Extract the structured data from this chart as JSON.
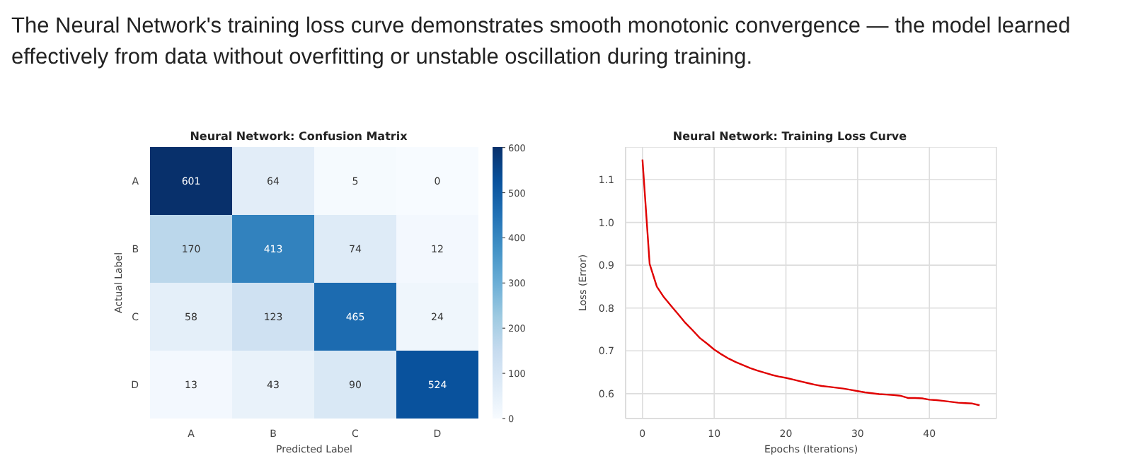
{
  "chart_data": [
    {
      "type": "other",
      "annotations": [
        "The Neural Network's training loss curve demonstrates smooth monotonic convergence — the model learned effectively from data without overfitting or unstable oscillation during training."
      ]
    },
    {
      "type": "heatmap",
      "title": "Neural Network: Confusion Matrix",
      "xlabel": "Predicted Label",
      "ylabel": "Actual Label",
      "categories": [
        "A",
        "B",
        "C",
        "D"
      ],
      "y_categories": [
        "A",
        "B",
        "C",
        "D"
      ],
      "cells": [
        [
          601,
          64,
          5,
          0
        ],
        [
          170,
          413,
          74,
          12
        ],
        [
          58,
          123,
          465,
          24
        ],
        [
          13,
          43,
          90,
          524
        ]
      ],
      "clim": [
        0,
        601
      ],
      "cticks": [
        0,
        100,
        200,
        300,
        400,
        500,
        600
      ],
      "data_labels": true
    },
    {
      "type": "line",
      "title": "Neural Network: Training Loss Curve",
      "xlabel": "Epochs (Iterations)",
      "ylabel": "Loss (Error)",
      "x": [
        0,
        1,
        2,
        3,
        4,
        5,
        6,
        7,
        8,
        9,
        10,
        11,
        12,
        13,
        14,
        15,
        16,
        17,
        18,
        19,
        20,
        21,
        22,
        23,
        24,
        25,
        26,
        27,
        28,
        29,
        30,
        31,
        32,
        33,
        34,
        35,
        36,
        37,
        38,
        39,
        40,
        41,
        42,
        43,
        44,
        45,
        46,
        47
      ],
      "series": [
        {
          "color": "#e00000",
          "values": [
            1.147,
            0.903,
            0.85,
            0.825,
            0.805,
            0.785,
            0.765,
            0.748,
            0.73,
            0.717,
            0.703,
            0.692,
            0.682,
            0.674,
            0.667,
            0.66,
            0.654,
            0.649,
            0.644,
            0.64,
            0.637,
            0.633,
            0.629,
            0.625,
            0.621,
            0.618,
            0.616,
            0.614,
            0.612,
            0.609,
            0.606,
            0.603,
            0.601,
            0.599,
            0.598,
            0.597,
            0.595,
            0.59,
            0.59,
            0.589,
            0.586,
            0.585,
            0.583,
            0.581,
            0.579,
            0.578,
            0.577,
            0.573
          ]
        }
      ],
      "xlim": [
        -2.35,
        49.35
      ],
      "xticks": [
        0,
        10,
        20,
        30,
        40
      ],
      "ylim": [
        0.542,
        1.176
      ],
      "yticks": [
        0.6,
        0.7,
        0.8,
        0.9,
        {
          "value": 1,
          "label": "1.0"
        },
        1.1
      ],
      "grid": true
    }
  ]
}
